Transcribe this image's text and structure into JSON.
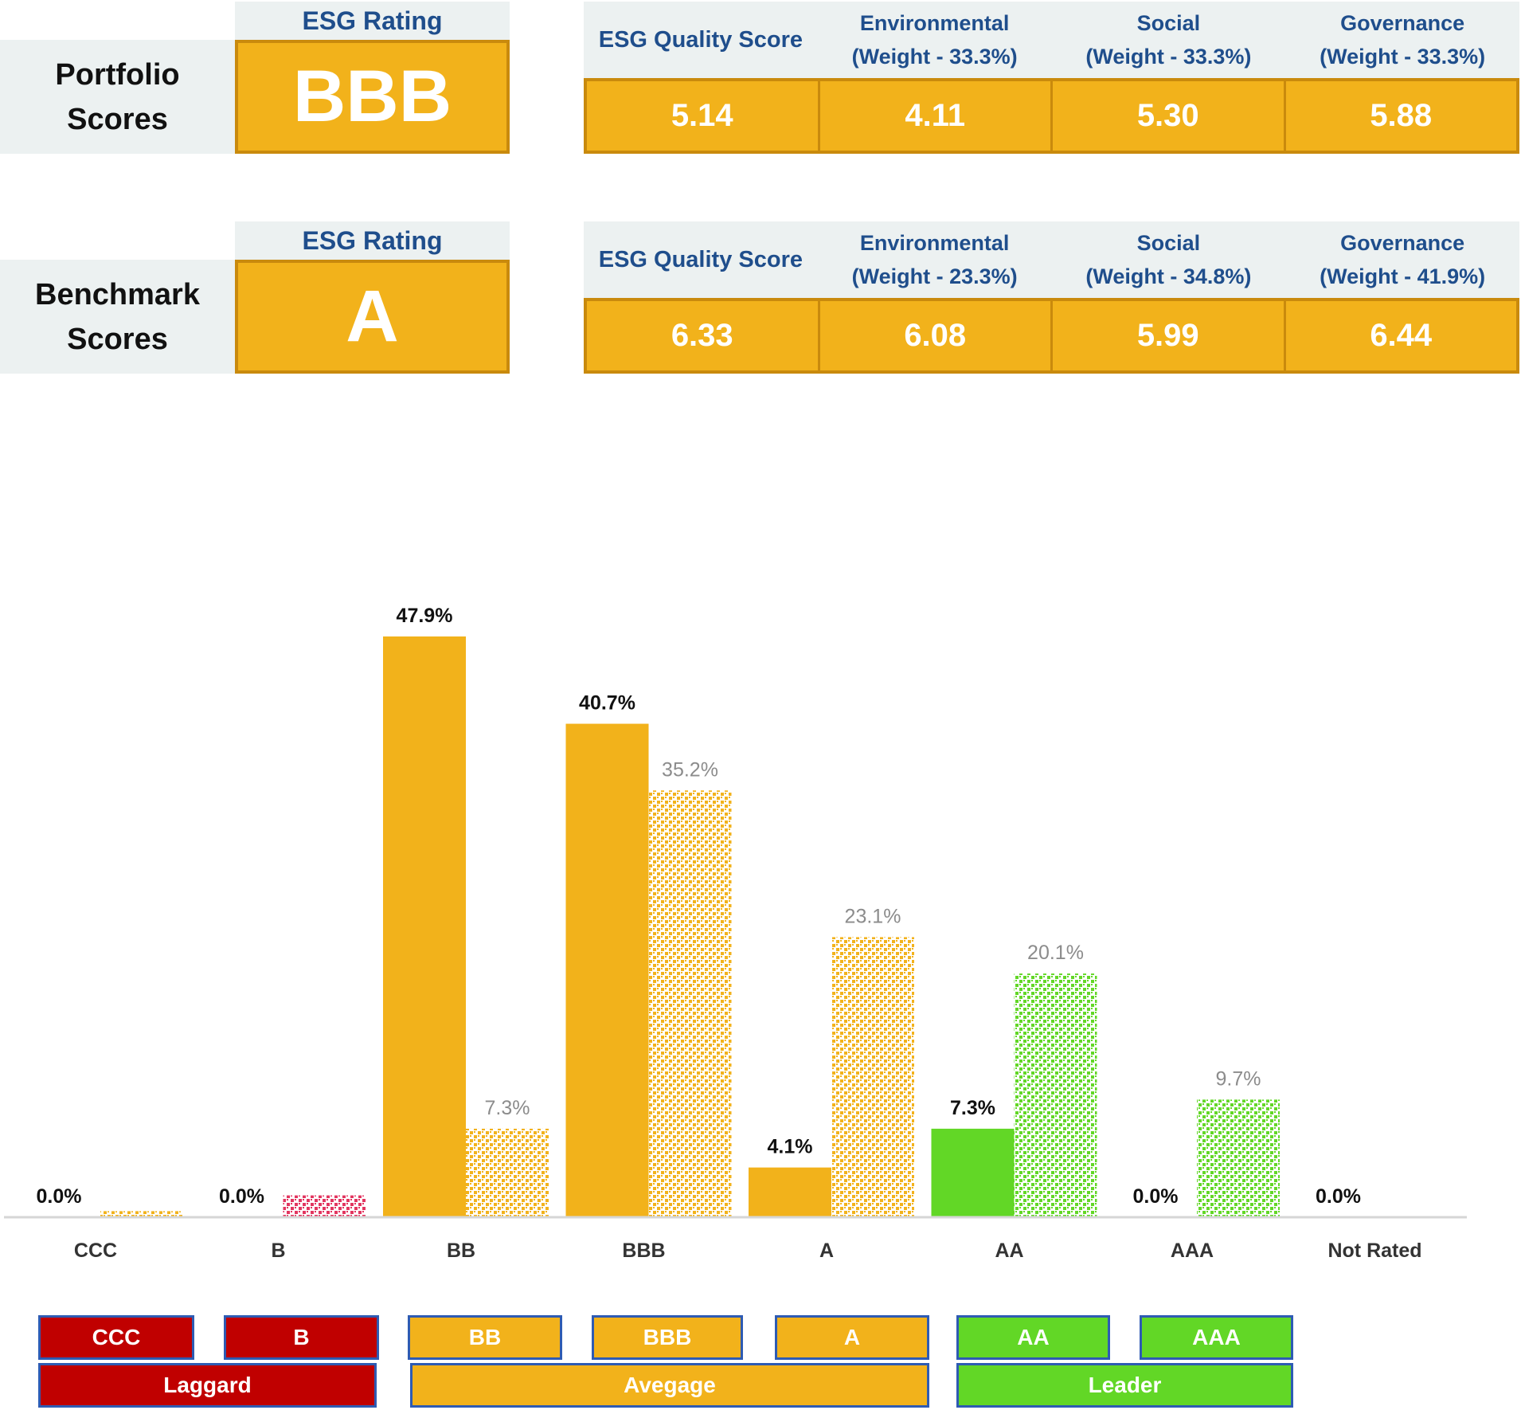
{
  "colors": {
    "orange": "#f2b21b",
    "orange_dark": "#c98a0d",
    "green": "#62d726",
    "red": "#c00000",
    "pink": "#e2355f",
    "header_bg": "#ecf1f1",
    "header_text": "#1f4e8c",
    "bench_label": "#8c8c8c"
  },
  "portfolio": {
    "label": "Portfolio\nScores",
    "rating_header": "ESG Rating",
    "rating": "BBB",
    "score_headers": [
      {
        "line1": "ESG Quality Score",
        "line2": ""
      },
      {
        "line1": "Environmental",
        "line2": "(Weight - 33.3%)"
      },
      {
        "line1": "Social",
        "line2": "(Weight - 33.3%)"
      },
      {
        "line1": "Governance",
        "line2": "(Weight - 33.3%)"
      }
    ],
    "scores": [
      "5.14",
      "4.11",
      "5.30",
      "5.88"
    ]
  },
  "benchmark": {
    "label": "Benchmark\nScores",
    "rating_header": "ESG Rating",
    "rating": "A",
    "score_headers": [
      {
        "line1": "ESG Quality Score",
        "line2": ""
      },
      {
        "line1": "Environmental",
        "line2": "(Weight - 23.3%)"
      },
      {
        "line1": "Social",
        "line2": "(Weight - 34.8%)"
      },
      {
        "line1": "Governance",
        "line2": "(Weight - 41.9%)"
      }
    ],
    "scores": [
      "6.33",
      "6.08",
      "5.99",
      "6.44"
    ]
  },
  "chart_data": {
    "type": "bar",
    "categories": [
      "CCC",
      "B",
      "BB",
      "BBB",
      "A",
      "AA",
      "AAA",
      "Not Rated"
    ],
    "series": [
      {
        "values": [
          0.0,
          0.0,
          47.9,
          40.7,
          4.1,
          7.3,
          0.0,
          0.0
        ],
        "labels": [
          "0.0%",
          "0.0%",
          "47.9%",
          "40.7%",
          "4.1%",
          "7.3%",
          "0.0%",
          "0.0%"
        ],
        "colors": [
          "#f2b21b",
          "#f2b21b",
          "#f2b21b",
          "#f2b21b",
          "#f2b21b",
          "#62d726",
          "#f2b21b",
          "#f2b21b"
        ]
      },
      {
        "values": [
          0.5,
          1.8,
          7.3,
          35.2,
          23.1,
          20.1,
          9.7,
          null
        ],
        "labels": [
          "",
          "",
          "7.3%",
          "35.2%",
          "23.1%",
          "20.1%",
          "9.7%",
          ""
        ],
        "colors": [
          "#f2b21b",
          "#e2355f",
          "#f2b21b",
          "#f2b21b",
          "#f2b21b",
          "#62d726",
          "#62d726",
          "#f2b21b"
        ]
      }
    ],
    "ylim": [
      0,
      50
    ],
    "grid": false,
    "legend": "none"
  },
  "legend_bands": {
    "ratings": [
      {
        "label": "CCC",
        "color": "#c00000"
      },
      {
        "label": "B",
        "color": "#c00000"
      },
      {
        "label": "BB",
        "color": "#f2b21b"
      },
      {
        "label": "BBB",
        "color": "#f2b21b"
      },
      {
        "label": "A",
        "color": "#f2b21b"
      },
      {
        "label": "AA",
        "color": "#62d726"
      },
      {
        "label": "AAA",
        "color": "#62d726"
      }
    ],
    "groups": [
      {
        "label": "Laggard",
        "color": "#c00000"
      },
      {
        "label": "Avegage",
        "color": "#f2b21b"
      },
      {
        "label": "Leader",
        "color": "#62d726"
      }
    ]
  }
}
